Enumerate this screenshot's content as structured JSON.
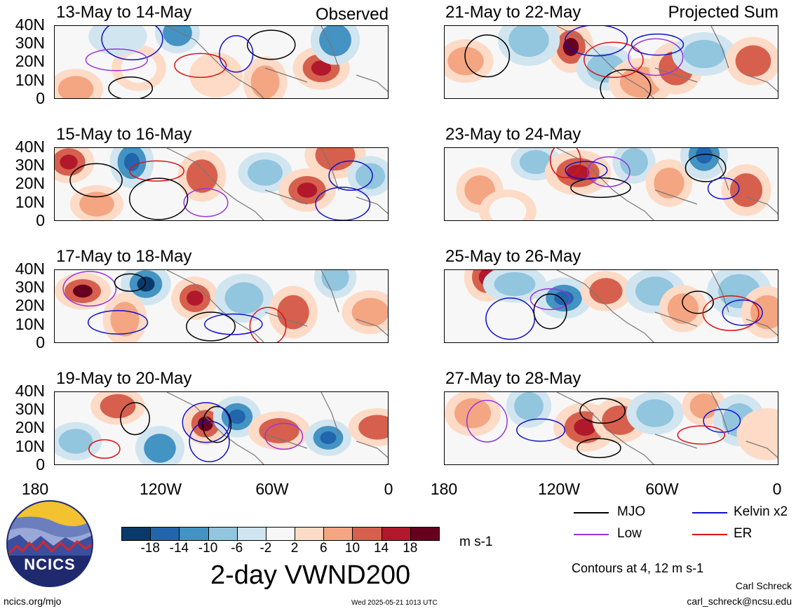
{
  "panels": [
    {
      "title": "13-May to 14-May",
      "tag": "Observed"
    },
    {
      "title": "15-May to 16-May",
      "tag": ""
    },
    {
      "title": "17-May to 18-May",
      "tag": ""
    },
    {
      "title": "19-May to 20-May",
      "tag": ""
    },
    {
      "title": "21-May to 22-May",
      "tag": "Projected Sum"
    },
    {
      "title": "23-May to 24-May",
      "tag": ""
    },
    {
      "title": "25-May to 26-May",
      "tag": ""
    },
    {
      "title": "27-May to 28-May",
      "tag": ""
    }
  ],
  "latitude_labels": [
    "40N",
    "30N",
    "20N",
    "10N",
    "0"
  ],
  "longitude_labels": [
    "180",
    "120W",
    "60W",
    "0"
  ],
  "colorbar": {
    "ticks": [
      "-18",
      "-14",
      "-10",
      "-6",
      "-2",
      "2",
      "6",
      "10",
      "14",
      "18"
    ],
    "colors": [
      "#0a3a6b",
      "#2166ac",
      "#4393c3",
      "#92c5de",
      "#d1e5f0",
      "#f7f7f7",
      "#fddbc7",
      "#f4a582",
      "#d6604d",
      "#b2182b",
      "#67001f"
    ],
    "unit": "m s-1"
  },
  "main_title": "2-day VWND200",
  "legend": {
    "items": [
      {
        "label": "MJO",
        "color": "#000000"
      },
      {
        "label": "Kelvin x2",
        "color": "#1010cc"
      },
      {
        "label": "Low",
        "color": "#9933dd"
      },
      {
        "label": "ER",
        "color": "#dd1111"
      }
    ],
    "contours_note": "Contours at 4, 12 m s-1"
  },
  "logo_text": "NCICS",
  "credits": {
    "url": "ncics.org/mjo",
    "timestamp": "Wed 2025-05-21 1013 UTC",
    "author": "Carl Schreck",
    "email": "carl_schreck@ncsu.edu"
  }
}
